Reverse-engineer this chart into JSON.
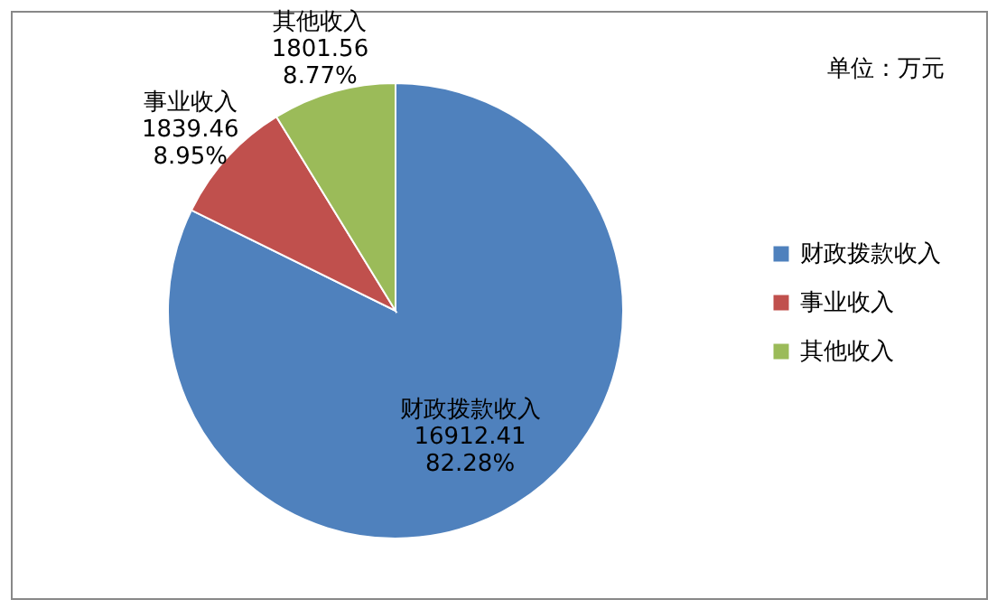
{
  "chart_data": {
    "type": "pie",
    "categories": [
      "财政拨款收入",
      "事业收入",
      "其他收入"
    ],
    "values": [
      16912.41,
      1839.46,
      1801.56
    ],
    "colors": [
      "#4f81bd",
      "#c0504d",
      "#9bbb59"
    ],
    "value_labels": [
      "16912.41\n82.28%",
      "1839.46\n8.95%",
      "1801.56\n8.77%"
    ],
    "legend": "right",
    "annotations": [
      "单位：万元"
    ]
  }
}
